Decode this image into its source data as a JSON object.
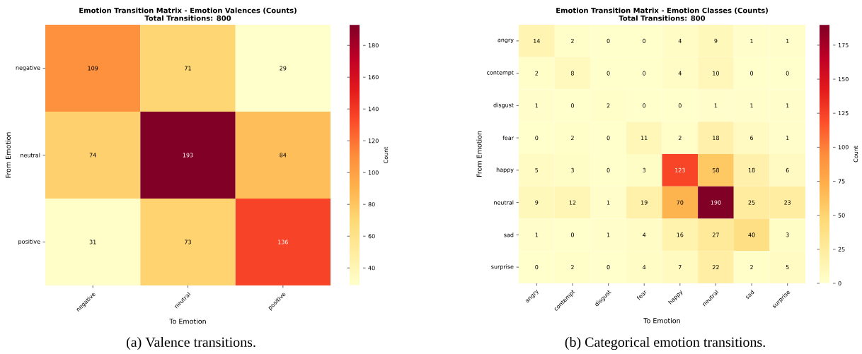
{
  "chart_data": [
    {
      "type": "heatmap",
      "title": "Emotion Transition Matrix - Emotion Valences (Counts)",
      "subtitle": "Total Transitions: 800",
      "xlabel": "To Emotion",
      "ylabel": "From Emotion",
      "clabel": "Count",
      "categories": [
        "negative",
        "neutral",
        "positive"
      ],
      "y_categories": [
        "negative",
        "neutral",
        "positive"
      ],
      "cells": [
        [
          109,
          71,
          29
        ],
        [
          74,
          193,
          84
        ],
        [
          31,
          73,
          136
        ]
      ],
      "data_labels": true,
      "clim": [
        29,
        193
      ],
      "cticks": [
        40,
        60,
        80,
        100,
        120,
        140,
        160,
        180
      ],
      "annotations": [
        "(a) Valence transitions."
      ]
    },
    {
      "type": "heatmap",
      "title": "Emotion Transition Matrix - Emotion Classes (Counts)",
      "subtitle": "Total Transitions: 800",
      "xlabel": "To Emotion",
      "ylabel": "From Emotion",
      "clabel": "Count",
      "categories": [
        "angry",
        "contempt",
        "disgust",
        "fear",
        "happy",
        "neutral",
        "sad",
        "surprise"
      ],
      "y_categories": [
        "angry",
        "contempt",
        "disgust",
        "fear",
        "happy",
        "neutral",
        "sad",
        "surprise"
      ],
      "cells": [
        [
          14,
          2,
          0,
          0,
          4,
          9,
          1,
          1
        ],
        [
          2,
          8,
          0,
          0,
          4,
          10,
          0,
          0
        ],
        [
          1,
          0,
          2,
          0,
          0,
          1,
          1,
          1
        ],
        [
          0,
          2,
          0,
          11,
          2,
          18,
          6,
          1
        ],
        [
          5,
          3,
          0,
          3,
          123,
          58,
          18,
          6
        ],
        [
          9,
          12,
          1,
          19,
          70,
          190,
          25,
          23
        ],
        [
          1,
          0,
          1,
          4,
          16,
          27,
          40,
          3
        ],
        [
          0,
          2,
          0,
          4,
          7,
          22,
          2,
          5
        ]
      ],
      "data_labels": true,
      "clim": [
        0,
        190
      ],
      "cticks": [
        0,
        25,
        50,
        75,
        100,
        125,
        150,
        175
      ],
      "annotations": [
        "(b) Categorical emotion transitions."
      ]
    }
  ]
}
